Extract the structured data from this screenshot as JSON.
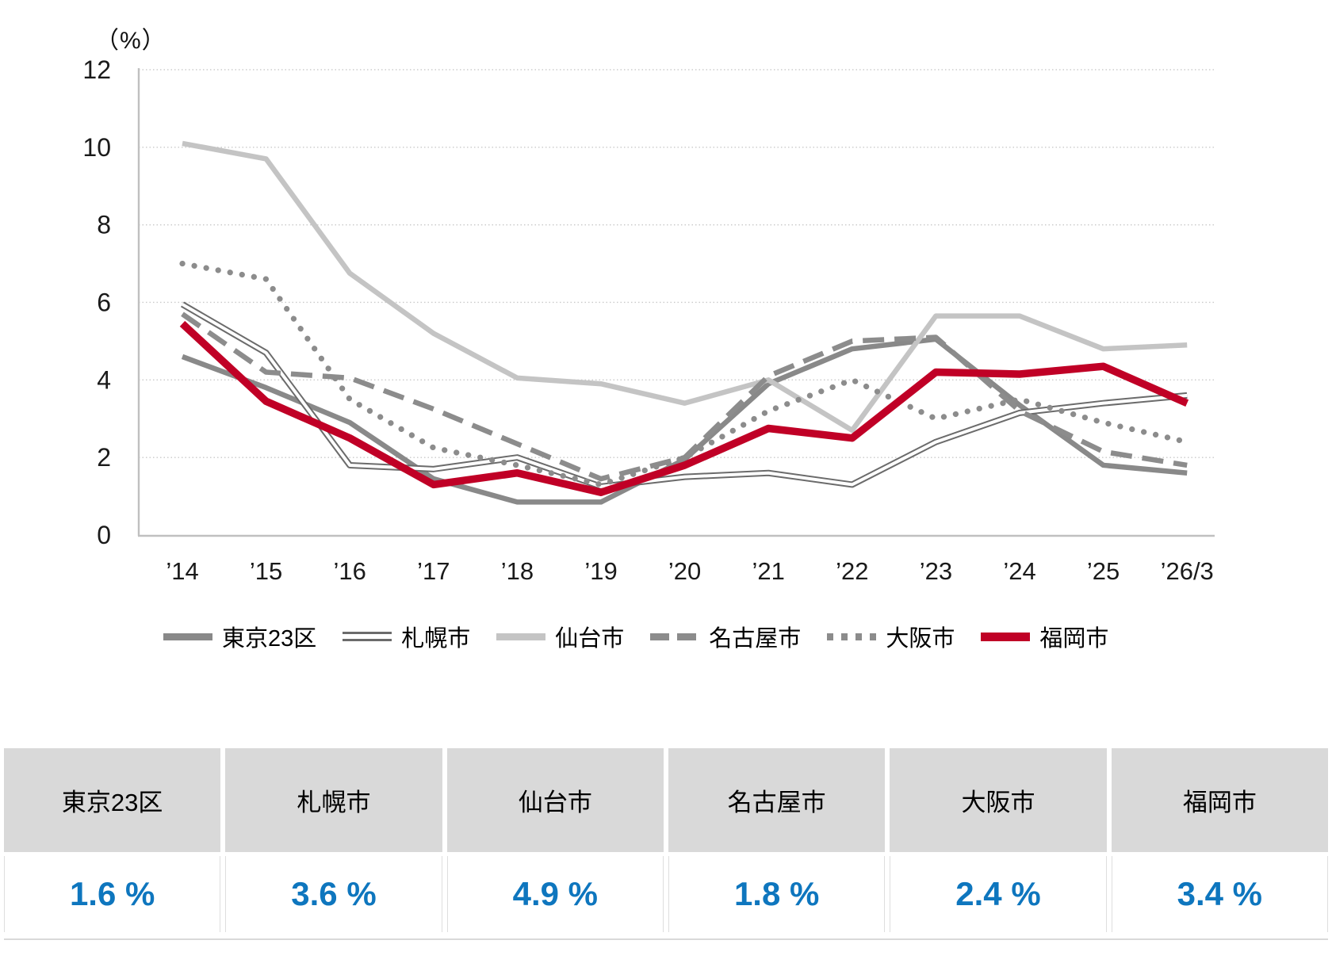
{
  "chart": {
    "unit_label": "（%）",
    "y_ticks": [
      0,
      2,
      4,
      6,
      8,
      10,
      12
    ]
  },
  "chart_data": {
    "type": "line",
    "title": "",
    "xlabel": "",
    "ylabel": "（%）",
    "ylim": [
      0,
      12
    ],
    "grid": "horizontal-dotted",
    "legend_position": "bottom",
    "categories": [
      "’14",
      "’15",
      "’16",
      "’17",
      "’18",
      "’19",
      "’20",
      "’21",
      "’22",
      "’23",
      "’24",
      "’25",
      "’26/3"
    ],
    "series": [
      {
        "id": "tokyo23",
        "name": "東京23区",
        "color": "#898989",
        "line_style": "solid-thick",
        "values": [
          4.6,
          3.8,
          2.9,
          1.45,
          0.85,
          0.85,
          1.95,
          3.9,
          4.8,
          5.05,
          3.35,
          1.8,
          1.6
        ]
      },
      {
        "id": "sapporo",
        "name": "札幌市",
        "color": "#6b6b6b",
        "line_style": "double-thin",
        "values": [
          5.95,
          4.7,
          1.8,
          1.7,
          2.0,
          1.25,
          1.5,
          1.6,
          1.3,
          2.4,
          3.15,
          3.4,
          3.6
        ]
      },
      {
        "id": "sendai",
        "name": "仙台市",
        "color": "#c4c4c4",
        "line_style": "solid-thick",
        "values": [
          10.1,
          9.7,
          6.75,
          5.2,
          4.05,
          3.9,
          3.4,
          4.0,
          2.7,
          5.65,
          5.65,
          4.8,
          4.9
        ]
      },
      {
        "id": "nagoya",
        "name": "名古屋市",
        "color": "#8c8c8c",
        "line_style": "dashed",
        "values": [
          5.7,
          4.2,
          4.05,
          3.25,
          2.35,
          1.45,
          2.0,
          4.1,
          5.0,
          5.1,
          3.2,
          2.15,
          1.8
        ]
      },
      {
        "id": "osaka",
        "name": "大阪市",
        "color": "#8c8c8c",
        "line_style": "dotted",
        "values": [
          7.0,
          6.6,
          3.5,
          2.25,
          1.8,
          1.3,
          2.0,
          3.2,
          4.0,
          3.0,
          3.5,
          2.9,
          2.4
        ]
      },
      {
        "id": "fukuoka",
        "name": "福岡市",
        "color": "#c00026",
        "line_style": "solid-heavy",
        "values": [
          5.45,
          3.45,
          2.5,
          1.3,
          1.6,
          1.1,
          1.8,
          2.75,
          2.5,
          4.2,
          4.15,
          4.35,
          3.4
        ]
      }
    ]
  },
  "table": {
    "header_bg": "#d9d9d9",
    "value_color": "#0e76be",
    "columns": [
      {
        "header": "東京23区",
        "value": "1.6 %"
      },
      {
        "header": "札幌市",
        "value": "3.6 %"
      },
      {
        "header": "仙台市",
        "value": "4.9 %"
      },
      {
        "header": "名古屋市",
        "value": "1.8 %"
      },
      {
        "header": "大阪市",
        "value": "2.4 %"
      },
      {
        "header": "福岡市",
        "value": "3.4 %"
      }
    ]
  }
}
